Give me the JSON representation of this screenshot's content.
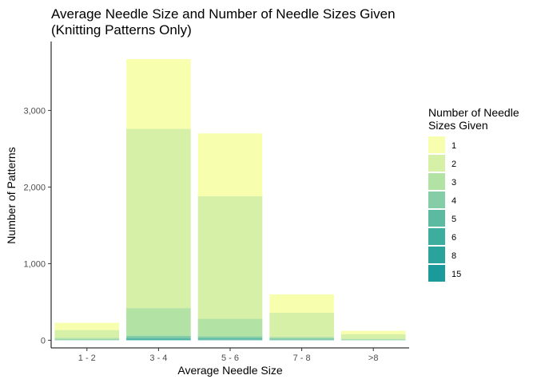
{
  "chart_data": {
    "type": "bar",
    "stacked": true,
    "title_lines": [
      "Average Needle Size and Number of Needle Sizes Given",
      "(Knitting Patterns Only)"
    ],
    "xlabel": "Average Needle Size",
    "ylabel": "Number of Patterns",
    "categories": [
      "1 - 2",
      "3 - 4",
      "5 - 6",
      "7 - 8",
      ">8"
    ],
    "ylim": [
      -100,
      3900
    ],
    "yticks": [
      0,
      1000,
      2000,
      3000
    ],
    "ytick_labels": [
      "0",
      "1,000",
      "2,000",
      "3,000"
    ],
    "grid": false,
    "legend": {
      "title_lines": [
        "Number of Needle",
        "Sizes Given"
      ],
      "position": "right"
    },
    "series": [
      {
        "name": "15",
        "color": "#1a9a9a",
        "values": [
          0,
          3,
          2,
          0,
          0
        ]
      },
      {
        "name": "8",
        "color": "#2aa39c",
        "values": [
          0,
          5,
          5,
          2,
          0
        ]
      },
      {
        "name": "6",
        "color": "#3dae9d",
        "values": [
          1,
          7,
          6,
          2,
          1
        ]
      },
      {
        "name": "5",
        "color": "#5bbaa0",
        "values": [
          2,
          15,
          12,
          4,
          2
        ]
      },
      {
        "name": "4",
        "color": "#84cda7",
        "values": [
          10,
          30,
          25,
          20,
          5
        ]
      },
      {
        "name": "3",
        "color": "#b3e2a5",
        "values": [
          20,
          360,
          230,
          20,
          10
        ]
      },
      {
        "name": "2",
        "color": "#d7f0a8",
        "values": [
          100,
          2340,
          1600,
          310,
          60
        ]
      },
      {
        "name": "1",
        "color": "#f7ffaf",
        "values": [
          95,
          910,
          820,
          240,
          45
        ]
      }
    ]
  }
}
